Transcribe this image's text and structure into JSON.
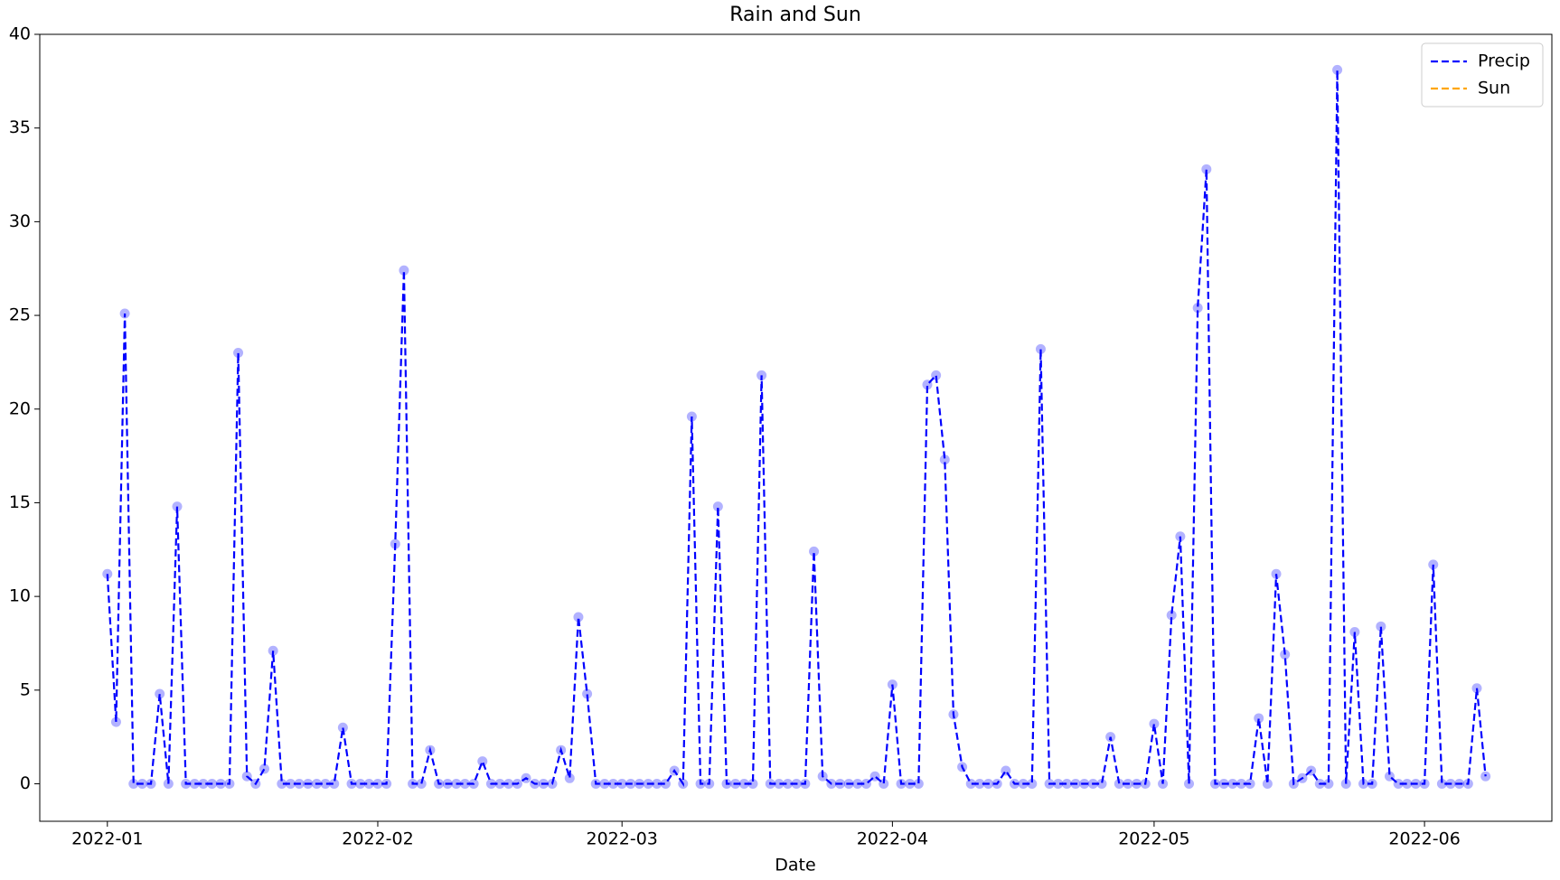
{
  "chart_data": {
    "type": "line",
    "title": "Rain and Sun",
    "x_label": "Date",
    "categories": [
      "2022-01",
      null,
      null,
      null,
      null,
      null,
      null,
      null,
      null,
      null,
      null,
      null,
      null,
      null,
      null,
      null,
      null,
      null,
      null,
      null,
      null,
      null,
      null,
      null,
      null,
      null,
      null,
      null,
      null,
      null,
      null,
      "2022-02",
      null,
      null,
      null,
      null,
      null,
      null,
      null,
      null,
      null,
      null,
      null,
      null,
      null,
      null,
      null,
      null,
      null,
      null,
      null,
      null,
      null,
      null,
      null,
      null,
      null,
      null,
      null,
      "2022-03",
      null,
      null,
      null,
      null,
      null,
      null,
      null,
      null,
      null,
      null,
      null,
      null,
      null,
      null,
      null,
      null,
      null,
      null,
      null,
      null,
      null,
      null,
      null,
      null,
      null,
      null,
      null,
      null,
      null,
      null,
      "2022-04",
      null,
      null,
      null,
      null,
      null,
      null,
      null,
      null,
      null,
      null,
      null,
      null,
      null,
      null,
      null,
      null,
      null,
      null,
      null,
      null,
      null,
      null,
      null,
      null,
      null,
      null,
      null,
      null,
      null,
      "2022-05",
      null,
      null,
      null,
      null,
      null,
      null,
      null,
      null,
      null,
      null,
      null,
      null,
      null,
      null,
      null,
      null,
      null,
      null,
      null,
      null,
      null,
      null,
      null,
      null,
      null,
      null,
      null,
      null,
      null,
      null,
      "2022-06",
      null,
      null,
      null,
      null,
      null,
      null,
      null
    ],
    "series": [
      {
        "name": "Precip",
        "color": "#0000ff",
        "values": [
          11.2,
          3.3,
          25.1,
          0,
          0,
          0,
          4.8,
          0,
          14.8,
          0,
          0,
          0,
          0,
          0,
          0,
          23,
          0.4,
          0,
          0.8,
          7.1,
          0,
          0,
          0,
          0,
          0,
          0,
          0,
          3,
          0,
          0,
          0,
          0,
          0,
          12.8,
          27.4,
          0,
          0,
          1.8,
          0,
          0,
          0,
          0,
          0,
          1.2,
          0,
          0,
          0,
          0,
          0.3,
          0,
          0,
          0,
          1.8,
          0.3,
          8.9,
          4.8,
          0,
          0,
          0,
          0,
          0,
          0,
          0,
          0,
          0,
          0.7,
          0,
          19.6,
          0,
          0,
          14.8,
          0,
          0,
          0,
          0,
          21.8,
          0,
          0,
          0,
          0,
          0,
          12.4,
          0.4,
          0,
          0,
          0,
          0,
          0,
          0.4,
          0,
          5.3,
          0,
          0,
          0,
          21.3,
          21.8,
          17.3,
          3.7,
          0.9,
          0,
          0,
          0,
          0,
          0.7,
          0,
          0,
          0,
          23.2,
          0,
          0,
          0,
          0,
          0,
          0,
          0,
          2.5,
          0,
          0,
          0,
          0,
          3.2,
          0,
          9,
          13.2,
          0,
          25.4,
          32.8,
          0,
          0,
          0,
          0,
          0,
          3.5,
          0,
          11.2,
          6.9,
          0,
          0.3,
          0.7,
          0,
          0,
          38.1,
          0,
          8.1,
          0,
          0,
          8.4,
          0.4,
          0,
          0,
          0,
          0,
          11.7,
          0,
          0,
          0,
          0,
          5.1,
          0.4
        ]
      },
      {
        "name": "Sun",
        "color": "#ffa500",
        "values": [
          null,
          null,
          null,
          null,
          null,
          null,
          null,
          null,
          null,
          null,
          null,
          null,
          null,
          null,
          null,
          null,
          null,
          null,
          null,
          null,
          null,
          null,
          null,
          null,
          null,
          null,
          null,
          null,
          null,
          null,
          null,
          null,
          null,
          null,
          null,
          null,
          null,
          null,
          null,
          null,
          null,
          null,
          null,
          null,
          null,
          null,
          null,
          null,
          null,
          null,
          null,
          null,
          null,
          null,
          null,
          null,
          null,
          null,
          null,
          null,
          null,
          null,
          null,
          null,
          null,
          null,
          null,
          null,
          null,
          null,
          null,
          null,
          null,
          null,
          null,
          null,
          null,
          null,
          null,
          null,
          null,
          null,
          null,
          null,
          null,
          null,
          null,
          null,
          null,
          null,
          null,
          null,
          null,
          null,
          null,
          null,
          null,
          null,
          null,
          null,
          null,
          null,
          null,
          null,
          null,
          null,
          null,
          null,
          null,
          null,
          null,
          null,
          null,
          null,
          null,
          null,
          null,
          null,
          null,
          null,
          null,
          null,
          null,
          null,
          null,
          null,
          null,
          null,
          null,
          null,
          null,
          null,
          null,
          null,
          null,
          null,
          null,
          null,
          null,
          null,
          null,
          null,
          null,
          null,
          null,
          null,
          null,
          null,
          null,
          null,
          null,
          null,
          null,
          null,
          null,
          null,
          null,
          null,
          null
        ]
      }
    ],
    "ylim": [
      -2,
      40
    ],
    "yticks": [
      0,
      5,
      10,
      15,
      20,
      25,
      30,
      35,
      40
    ],
    "line_style": "dashed",
    "markers": true,
    "legend": "upper right",
    "grid": false
  }
}
